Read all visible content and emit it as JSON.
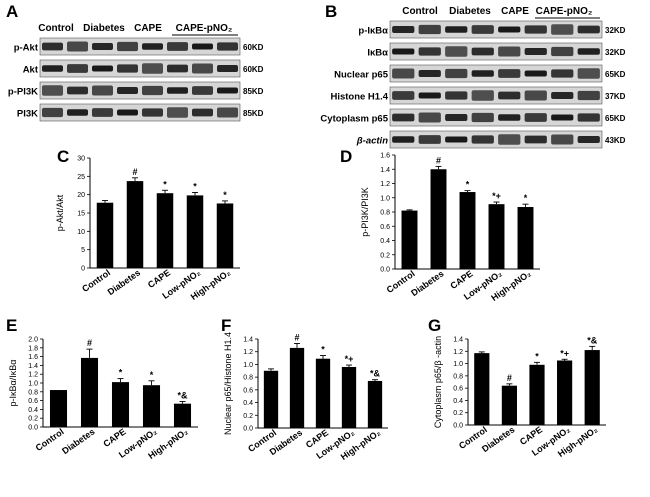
{
  "figure": {
    "panels": {
      "A": {
        "label": "A",
        "lanes": [
          "Control",
          "Diabetes",
          "CAPE",
          "CAPE-pNO₂"
        ],
        "rows": [
          {
            "name": "p-Akt",
            "kd": "60KD"
          },
          {
            "name": "Akt",
            "kd": "60KD"
          },
          {
            "name": "p-PI3K",
            "kd": "85KD"
          },
          {
            "name": "PI3K",
            "kd": "85KD"
          }
        ]
      },
      "B": {
        "label": "B",
        "lanes": [
          "Control",
          "Diabetes",
          "CAPE",
          "CAPE-pNO₂"
        ],
        "rows": [
          {
            "name": "p-IκBα",
            "kd": "32KD"
          },
          {
            "name": "IκBα",
            "kd": "32KD"
          },
          {
            "name": "Nuclear p65",
            "kd": "65KD"
          },
          {
            "name": "Histone H1.4",
            "kd": "37KD"
          },
          {
            "name": "Cytoplasm p65",
            "kd": "65KD"
          },
          {
            "name": "β-actin",
            "kd": "43KD"
          }
        ]
      }
    }
  },
  "chart_data": [
    {
      "panel": "C",
      "type": "bar",
      "categories": [
        "Control",
        "Diabetes",
        "CAPE",
        "Low-pNO₂",
        "High-pNO₂"
      ],
      "values": [
        17.8,
        23.7,
        20.4,
        19.8,
        17.6
      ],
      "errors": [
        0.6,
        0.9,
        0.8,
        0.8,
        0.7
      ],
      "annotations": [
        "",
        "#",
        "*",
        "*",
        "*"
      ],
      "ylabel": "p-Akt/Akt",
      "ylim": [
        0,
        30
      ],
      "yticks": [
        0,
        5,
        10,
        15,
        20,
        25,
        30
      ]
    },
    {
      "panel": "D",
      "type": "bar",
      "categories": [
        "Control",
        "Diabetes",
        "CAPE",
        "Low-pNO₂",
        "High-pNO₂"
      ],
      "values": [
        0.82,
        1.4,
        1.08,
        0.91,
        0.87
      ],
      "errors": [
        0.01,
        0.04,
        0.02,
        0.03,
        0.04
      ],
      "annotations": [
        "",
        "#",
        "*",
        "*+",
        "*"
      ],
      "ylabel": "p-PI3K/PI3K",
      "ylim": [
        0,
        1.6
      ],
      "yticks": [
        0.0,
        0.2,
        0.4,
        0.6,
        0.8,
        1.0,
        1.2,
        1.4,
        1.6
      ]
    },
    {
      "panel": "E",
      "type": "bar",
      "categories": [
        "Control",
        "Diabetes",
        "CAPE",
        "Low-pNO₂",
        "High-pNO₂"
      ],
      "values": [
        0.84,
        1.57,
        1.02,
        0.95,
        0.53
      ],
      "errors": [
        0.0,
        0.2,
        0.08,
        0.1,
        0.05
      ],
      "annotations": [
        "",
        "#",
        "*",
        "*",
        "*&"
      ],
      "ylabel": "p-IκBα/IκBα",
      "ylim": [
        0,
        2.0
      ],
      "yticks": [
        0.0,
        0.2,
        0.4,
        0.6,
        0.8,
        1.0,
        1.2,
        1.4,
        1.6,
        1.8,
        2.0
      ]
    },
    {
      "panel": "F",
      "type": "bar",
      "categories": [
        "Control",
        "Diabetes",
        "CAPE",
        "Low-pNO₂",
        "High-pNO₂"
      ],
      "values": [
        0.9,
        1.26,
        1.09,
        0.96,
        0.74
      ],
      "errors": [
        0.03,
        0.07,
        0.05,
        0.03,
        0.02
      ],
      "annotations": [
        "",
        "#",
        "*",
        "*+",
        "*&"
      ],
      "ylabel": "Nuclear p65/Histone H1.4",
      "ylim": [
        0,
        1.4
      ],
      "yticks": [
        0.0,
        0.2,
        0.4,
        0.6,
        0.8,
        1.0,
        1.2,
        1.4
      ]
    },
    {
      "panel": "G",
      "type": "bar",
      "categories": [
        "Control",
        "Diabetes",
        "CAPE",
        "Low-pNO₂",
        "High-pNO₂"
      ],
      "values": [
        1.17,
        0.64,
        0.98,
        1.05,
        1.22
      ],
      "errors": [
        0.02,
        0.03,
        0.04,
        0.02,
        0.06
      ],
      "annotations": [
        "",
        "#",
        "*",
        "*+",
        "*&"
      ],
      "ylabel": "Cytoplasm p65/β -actin",
      "ylim": [
        0,
        1.4
      ],
      "yticks": [
        0.0,
        0.2,
        0.4,
        0.6,
        0.8,
        1.0,
        1.2,
        1.4
      ]
    }
  ]
}
